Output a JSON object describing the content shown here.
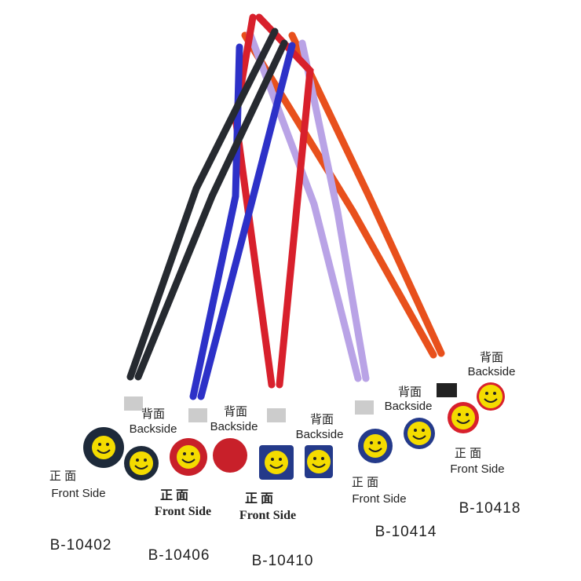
{
  "products": [
    {
      "code": "B-10402",
      "back": {
        "zh": "背面",
        "en": "Backside"
      },
      "front": {
        "zh": "正 面",
        "en": "Front Side"
      }
    },
    {
      "code": "B-10406",
      "back": {
        "zh": "背面",
        "en": "Backside"
      },
      "front": {
        "zh": "正 面",
        "en": "Front Side"
      }
    },
    {
      "code": "B-10410",
      "back": {
        "zh": "背面",
        "en": "Backside"
      },
      "front": {
        "zh": "正 面",
        "en": "Front Side"
      }
    },
    {
      "code": "B-10414",
      "back": {
        "zh": "背面",
        "en": "Backside"
      },
      "front": {
        "zh": "正 面",
        "en": "Front Side"
      }
    },
    {
      "code": "B-10418",
      "back": {
        "zh": "背面",
        "en": "Backside"
      },
      "front": {
        "zh": "正 面",
        "en": "Front Side"
      }
    }
  ]
}
